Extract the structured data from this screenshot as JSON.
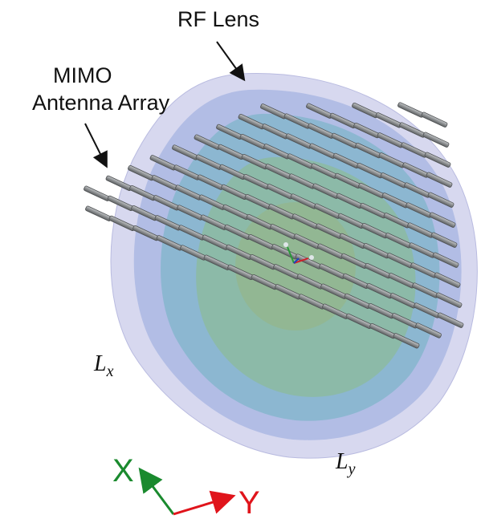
{
  "labels": {
    "rf_lens": "RF Lens",
    "mimo_line1": "MIMO",
    "mimo_line2": "Antenna Array",
    "lx_base": "L",
    "lx_sub": "x",
    "ly_base": "L",
    "ly_sub": "y",
    "axis_x": "X",
    "axis_y": "Y"
  },
  "colors": {
    "axis_x": "#1a8a2e",
    "axis_y": "#e0141b",
    "lens_outer": "#c9cbea",
    "lens_mid": "#a9b6e2",
    "lens_inner": "#7fb6c9",
    "lens_core": "#8cba97",
    "antenna": "#8a8d90"
  },
  "antenna_array": {
    "element_count_visible": "approximately 190"
  }
}
